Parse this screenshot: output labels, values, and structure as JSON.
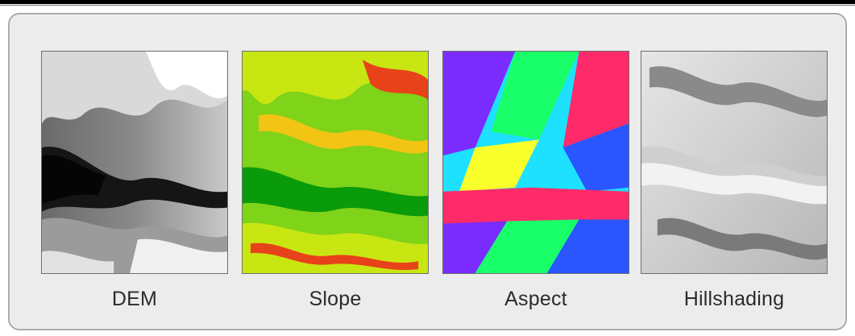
{
  "figure": {
    "panels": [
      {
        "id": "dem",
        "label": "DEM",
        "palette": [
          "#0e0e0e",
          "#5a5a5a",
          "#9d9d9d",
          "#dedede",
          "#ffffff"
        ]
      },
      {
        "id": "slope",
        "label": "Slope",
        "palette": [
          "#0a9b0a",
          "#58c81a",
          "#c8e612",
          "#f2c414",
          "#e8421a"
        ]
      },
      {
        "id": "aspect",
        "label": "Aspect",
        "palette": [
          "#ff2a6a",
          "#7a2cff",
          "#1ee0ff",
          "#19ff6a",
          "#f8ff2a",
          "#2a55ff"
        ]
      },
      {
        "id": "hill",
        "label": "Hillshading",
        "palette": [
          "#6e6e6e",
          "#a4a4a4",
          "#cfcfcf",
          "#f2f2f2"
        ]
      }
    ]
  }
}
